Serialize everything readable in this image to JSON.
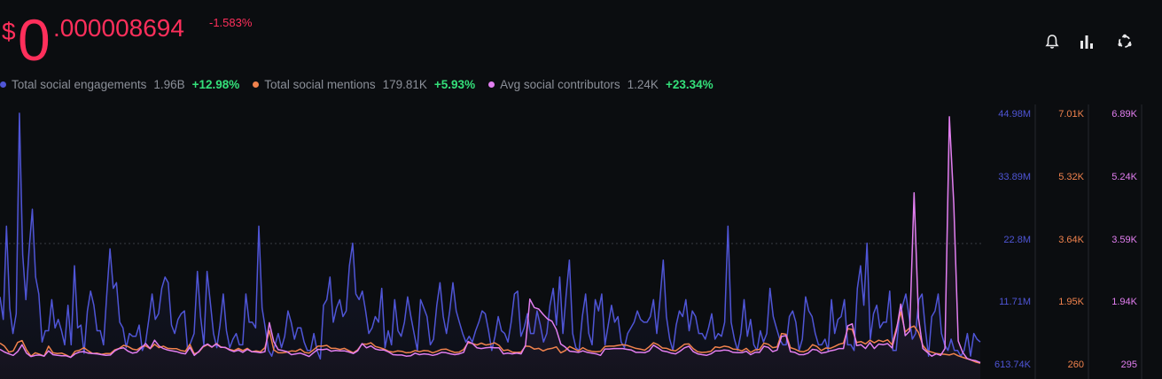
{
  "price": {
    "currency": "$",
    "integer": "0",
    "decimal": ".000008694",
    "change": "-1.583%"
  },
  "toolbar": [
    {
      "name": "alert-bell-icon"
    },
    {
      "name": "bar-chart-icon"
    },
    {
      "name": "share-network-icon"
    }
  ],
  "legend": [
    {
      "label": "Total social engagements",
      "value": "1.96B",
      "change": "+12.98%",
      "color": "#4f55d6"
    },
    {
      "label": "Total social mentions",
      "value": "179.81K",
      "change": "+5.93%",
      "color": "#f0824d"
    },
    {
      "label": "Avg social contributors",
      "value": "1.24K",
      "change": "+23.34%",
      "color": "#e27ef0"
    }
  ],
  "chart_data": {
    "type": "line",
    "axes": [
      {
        "series": "Total social engagements",
        "color": "#4f55d6",
        "ticks": [
          "44.98M",
          "33.89M",
          "22.8M",
          "11.71M",
          "613.74K"
        ],
        "range": [
          613740,
          44980000
        ]
      },
      {
        "series": "Total social mentions",
        "color": "#f0824d",
        "ticks": [
          "7.01K",
          "5.32K",
          "3.64K",
          "1.95K",
          "260"
        ],
        "range": [
          260,
          7010
        ]
      },
      {
        "series": "Avg social contributors",
        "color": "#e27ef0",
        "ticks": [
          "6.89K",
          "5.24K",
          "3.59K",
          "1.94K",
          "295"
        ],
        "range": [
          295,
          6890
        ]
      }
    ],
    "series": [
      {
        "name": "Total social engagements",
        "color": "#4f55d6",
        "values": [
          12.5,
          8.5,
          25,
          10.5,
          6,
          9.5,
          45,
          20,
          12,
          21,
          28,
          16,
          13,
          4.5,
          6.5,
          6.5,
          12,
          7,
          8.5,
          6.5,
          4,
          11,
          4,
          18,
          7,
          7.5,
          2.5,
          10,
          13.5,
          11,
          6.5,
          6.5,
          4,
          13,
          21,
          14,
          15,
          8,
          7,
          3.5,
          6,
          5.5,
          5.5,
          7.5,
          3,
          4.5,
          8.5,
          13,
          8.5,
          9.5,
          14,
          16,
          15,
          7.5,
          6,
          8.5,
          9.5,
          10,
          3,
          4.5,
          6,
          17,
          9,
          4,
          17,
          11.5,
          6,
          3.5,
          7.5,
          13,
          6.5,
          3.5,
          5,
          6,
          4,
          4,
          13,
          8,
          8,
          7,
          25,
          10.5,
          7,
          3,
          2,
          4,
          6,
          3.5,
          5.5,
          10,
          8,
          5,
          7,
          7,
          4.5,
          3,
          3,
          6,
          3,
          1.5,
          11,
          12,
          16,
          8,
          10.5,
          12,
          9,
          10,
          18,
          22,
          13,
          12,
          13.5,
          10,
          6,
          7,
          9,
          8,
          14,
          3.5,
          6.5,
          4,
          12,
          6.5,
          5.5,
          8,
          12.5,
          9,
          6,
          3,
          12,
          10.5,
          9,
          4,
          5,
          11,
          15,
          9,
          6,
          10,
          15,
          10,
          8,
          6,
          4.5,
          5.5,
          4.5,
          6.5,
          8,
          10,
          9.5,
          6.5,
          3,
          5.5,
          9,
          6.5,
          6,
          4.5,
          8,
          13,
          13.5,
          5.5,
          7,
          9.5,
          6,
          6,
          10,
          7.5,
          4.5,
          6,
          11,
          14,
          7.5,
          16,
          6,
          13,
          19,
          6,
          3.5,
          3,
          9,
          13,
          6,
          4,
          12,
          10,
          13,
          4,
          7.5,
          11,
          8,
          9,
          4.5,
          3.5,
          6,
          7,
          8,
          10,
          8.5,
          8,
          8,
          9,
          12,
          6,
          12,
          19,
          9,
          5,
          3,
          7.5,
          10,
          9,
          12,
          6.5,
          10,
          9,
          6,
          6,
          5,
          7,
          9.5,
          5,
          6,
          5.5,
          8,
          25,
          8,
          5,
          3,
          6,
          12,
          5.5,
          8.5,
          4,
          3,
          6.5,
          4.5,
          6,
          14,
          9,
          7,
          5,
          4,
          4,
          9,
          10,
          8,
          3,
          5,
          12.5,
          10,
          9,
          6,
          4,
          4,
          5,
          3,
          12,
          6,
          8.5,
          9,
          12,
          4,
          4,
          3,
          14,
          18,
          11,
          22,
          5,
          9.5,
          11,
          7,
          8,
          8,
          13.5,
          3,
          3,
          9,
          11,
          13,
          9,
          5,
          6,
          12,
          13,
          7,
          2,
          9,
          10,
          13,
          6,
          4,
          3,
          5,
          3,
          3,
          2,
          3,
          6,
          2,
          6,
          5,
          4.5
        ]
      },
      {
        "name": "Total social mentions",
        "color": "#f0824d",
        "values": [
          820,
          740,
          580,
          610,
          840,
          890,
          640,
          470,
          560,
          520,
          470,
          740,
          560,
          540,
          550,
          500,
          440,
          600,
          630,
          700,
          610,
          540,
          550,
          520,
          540,
          540,
          640,
          680,
          760,
          730,
          660,
          640,
          720,
          750,
          670,
          790,
          700,
          740,
          680,
          670,
          670,
          620,
          600,
          790,
          530,
          580,
          720,
          780,
          710,
          810,
          720,
          700,
          650,
          620,
          680,
          620,
          680,
          590,
          610,
          590,
          700,
          1160,
          640,
          560,
          560,
          580,
          610,
          600,
          660,
          570,
          550,
          640,
          740,
          740,
          760,
          680,
          680,
          650,
          680,
          620,
          560,
          640,
          800,
          790,
          830,
          730,
          700,
          660,
          600,
          580,
          610,
          600,
          560,
          570,
          620,
          590,
          620,
          610,
          560,
          600,
          650,
          660,
          610,
          570,
          580,
          650,
          830,
          810,
          770,
          820,
          770,
          790,
          830,
          760,
          620,
          640,
          580,
          570,
          580,
          740,
          730,
          660,
          680,
          610,
          660,
          680,
          720,
          560,
          620,
          730,
          670,
          610,
          700,
          630,
          600,
          590,
          600,
          730,
          740,
          740,
          760,
          780,
          760,
          720,
          680,
          660,
          630,
          720,
          830,
          780,
          690,
          680,
          630,
          610,
          700,
          790,
          800,
          670,
          590,
          570,
          580,
          600,
          720,
          700,
          740,
          720,
          660,
          650,
          610,
          680,
          570,
          640,
          650,
          820,
          790,
          700,
          720,
          1080,
          1060,
          700,
          660,
          600,
          590,
          640,
          780,
          730,
          620,
          690,
          680,
          730,
          790,
          820,
          1210,
          1190,
          840,
          860,
          800,
          900,
          830,
          900,
          860,
          910,
          780,
          1220,
          1660,
          1120,
          1230,
          1280,
          1110,
          760,
          610,
          580,
          540,
          530,
          520,
          500,
          540,
          480,
          440,
          400,
          360,
          310,
          280
        ]
      },
      {
        "name": "Avg social contributors",
        "color": "#e27ef0",
        "values": [
          680,
          610,
          560,
          520,
          620,
          800,
          580,
          490,
          520,
          530,
          500,
          640,
          540,
          520,
          510,
          510,
          470,
          560,
          610,
          620,
          580,
          570,
          560,
          540,
          520,
          530,
          640,
          700,
          720,
          630,
          580,
          600,
          720,
          830,
          700,
          920,
          770,
          700,
          660,
          640,
          620,
          580,
          560,
          730,
          520,
          620,
          760,
          820,
          740,
          820,
          730,
          730,
          660,
          620,
          660,
          600,
          680,
          620,
          610,
          590,
          620,
          1380,
          880,
          670,
          650,
          620,
          540,
          560,
          580,
          540,
          490,
          590,
          680,
          670,
          690,
          630,
          650,
          640,
          640,
          610,
          570,
          640,
          830,
          720,
          770,
          690,
          660,
          660,
          610,
          540,
          530,
          530,
          500,
          510,
          580,
          540,
          560,
          550,
          520,
          550,
          600,
          590,
          560,
          540,
          560,
          600,
          890,
          830,
          720,
          700,
          720,
          730,
          720,
          720,
          560,
          580,
          560,
          580,
          560,
          790,
          2000,
          1780,
          1740,
          1600,
          1480,
          1420,
          1200,
          820,
          740,
          630,
          620,
          600,
          640,
          600,
          580,
          560,
          520,
          690,
          690,
          700,
          700,
          700,
          680,
          660,
          600,
          600,
          590,
          640,
          790,
          720,
          640,
          620,
          580,
          560,
          630,
          720,
          760,
          620,
          560,
          540,
          520,
          560,
          640,
          640,
          660,
          650,
          600,
          590,
          590,
          630,
          540,
          600,
          600,
          760,
          730,
          620,
          660,
          1020,
          1040,
          620,
          600,
          540,
          540,
          580,
          680,
          660,
          580,
          600,
          640,
          660,
          700,
          700,
          1300,
          1350,
          780,
          800,
          700,
          860,
          700,
          820,
          800,
          830,
          720,
          1160,
          1870,
          1040,
          1160,
          4800,
          1500,
          700,
          600,
          500,
          560,
          520,
          700,
          6800,
          4500,
          900,
          600,
          440,
          400,
          380,
          330
        ]
      }
    ],
    "xlabel": "",
    "ylabel": "",
    "grid": "single dashed line at mid level",
    "legend": "top-left"
  }
}
